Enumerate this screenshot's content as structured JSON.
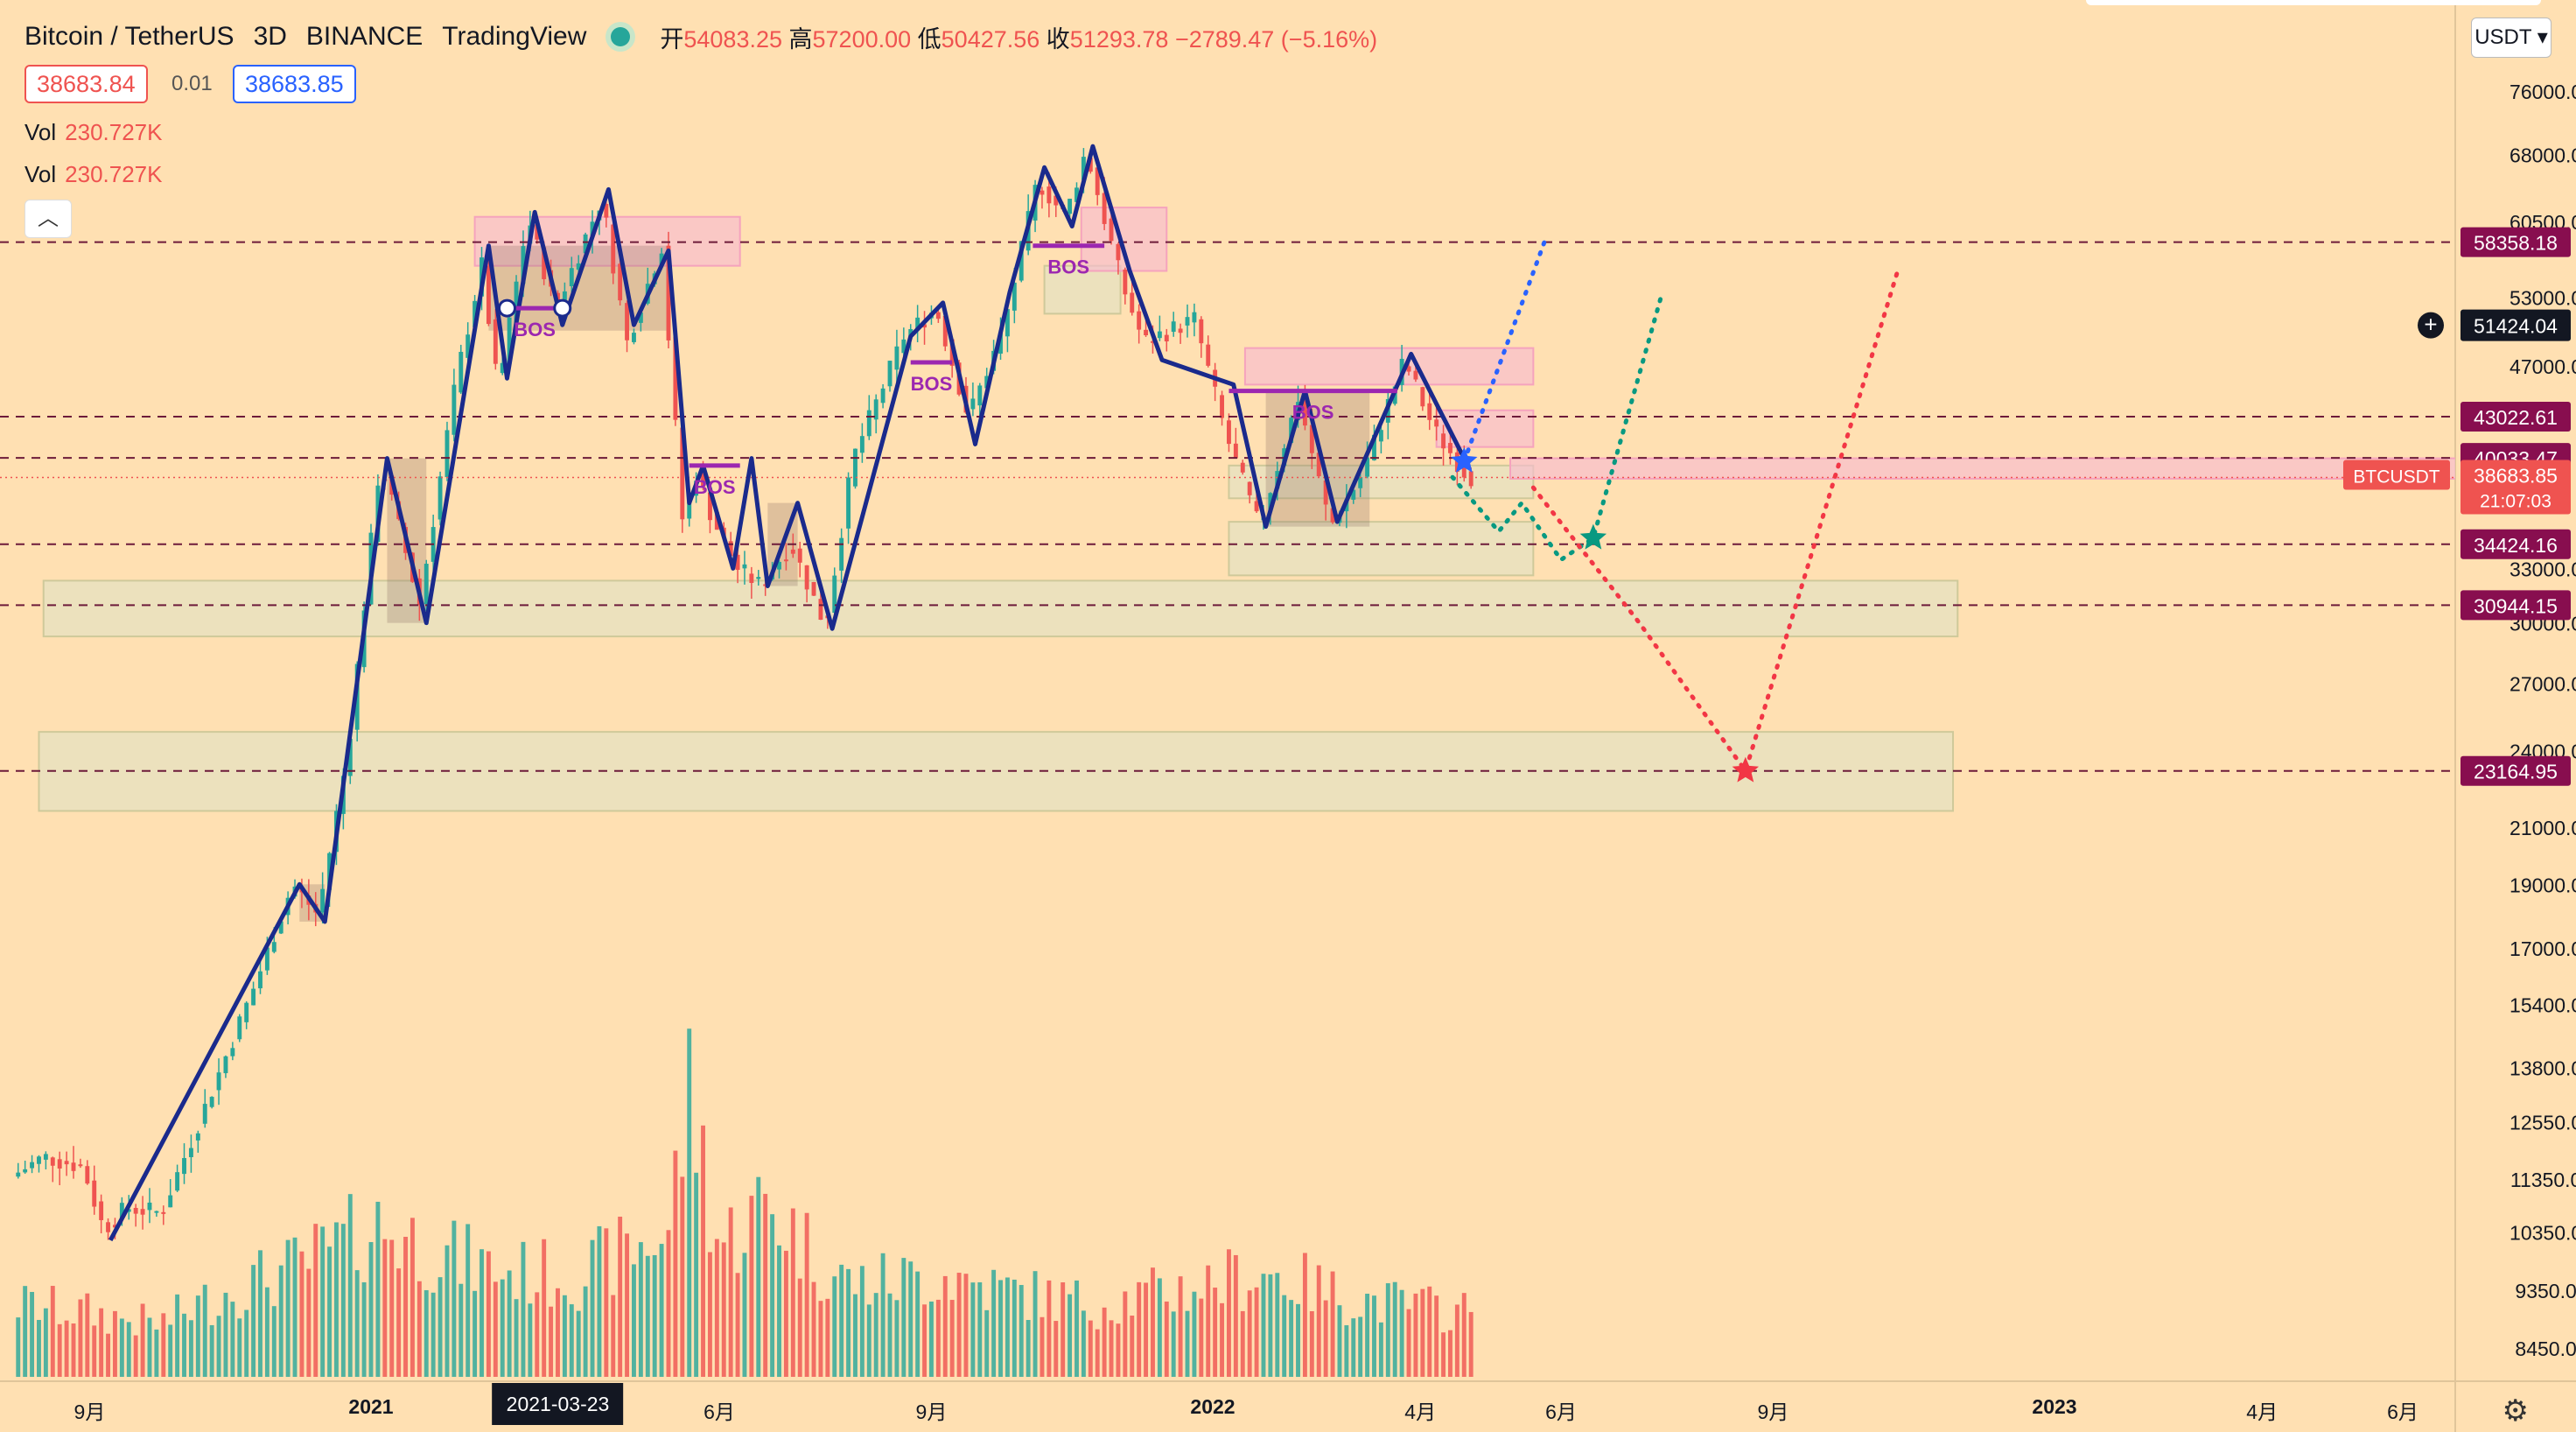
{
  "header": {
    "symbol": "Bitcoin / TetherUS",
    "interval": "3D",
    "exchange": "BINANCE",
    "publisher": "TradingView",
    "open_label": "开",
    "open": "54083.25",
    "high_label": "高",
    "high": "57200.00",
    "low_label": "低",
    "low": "50427.56",
    "close_label": "收",
    "close": "51293.78",
    "change": "−2789.47 (−5.16%)"
  },
  "quote": {
    "sell": "38683.84",
    "spread": "0.01",
    "buy": "38683.85"
  },
  "indicators": [
    {
      "label": "Vol",
      "value": "230.727K"
    },
    {
      "label": "Vol",
      "value": "230.727K"
    }
  ],
  "collapse_icon": "chevron-up-icon",
  "currency_select": "USDT",
  "settings_icon": "gear-icon",
  "colors": {
    "background": "#ffe0b2",
    "up": "#26a69a",
    "down": "#ef5350",
    "wave": "#1a2a8c",
    "bos": "#9c27b0",
    "level_label": "#880e4f",
    "supply_zone": "#f8bbd0",
    "demand_zone": "#e6e2c0"
  },
  "chart_data": {
    "type": "candlestick",
    "y_scale": "log",
    "ylim": [
      7800,
      90000
    ],
    "y_ticks": [
      {
        "value": 76000,
        "label": "76000.00"
      },
      {
        "value": 68000,
        "label": "68000.00"
      },
      {
        "value": 60500,
        "label": "60500.00"
      },
      {
        "value": 53000,
        "label": "53000.00"
      },
      {
        "value": 47000,
        "label": "47000.00"
      },
      {
        "value": 33000,
        "label": "33000.00"
      },
      {
        "value": 30000,
        "label": "30000.00"
      },
      {
        "value": 27000,
        "label": "27000.00"
      },
      {
        "value": 24000,
        "label": "24000.00"
      },
      {
        "value": 21000,
        "label": "21000.00"
      },
      {
        "value": 19000,
        "label": "19000.00"
      },
      {
        "value": 17000,
        "label": "17000.00"
      },
      {
        "value": 15400,
        "label": "15400.00"
      },
      {
        "value": 13800,
        "label": "13800.00"
      },
      {
        "value": 12550,
        "label": "12550.00"
      },
      {
        "value": 11350,
        "label": "11350.00"
      },
      {
        "value": 10350,
        "label": "10350.00"
      },
      {
        "value": 9350,
        "label": "9350.00"
      },
      {
        "value": 8450,
        "label": "8450.00"
      }
    ],
    "x_ticks": [
      {
        "date": "2020-09-01",
        "label": "9月",
        "bold": false
      },
      {
        "date": "2021-01-01",
        "label": "2021",
        "bold": true
      },
      {
        "date": "2021-06-01",
        "label": "6月",
        "bold": false
      },
      {
        "date": "2021-09-01",
        "label": "9月",
        "bold": false
      },
      {
        "date": "2022-01-01",
        "label": "2022",
        "bold": true
      },
      {
        "date": "2022-04-01",
        "label": "4月",
        "bold": false
      },
      {
        "date": "2022-06-01",
        "label": "6月",
        "bold": false
      },
      {
        "date": "2022-09-01",
        "label": "9月",
        "bold": false
      },
      {
        "date": "2023-01-01",
        "label": "2023",
        "bold": true
      },
      {
        "date": "2023-04-01",
        "label": "4月",
        "bold": false
      },
      {
        "date": "2023-06-01",
        "label": "6月",
        "bold": false
      }
    ],
    "x_cursor_label": {
      "date": "2021-03-23",
      "label": "2021-03-23"
    },
    "price_path": [
      [
        "2020-08-01",
        11400
      ],
      [
        "2020-08-15",
        11800
      ],
      [
        "2020-09-01",
        11600
      ],
      [
        "2020-09-10",
        10400
      ],
      [
        "2020-09-20",
        10800
      ],
      [
        "2020-10-05",
        10700
      ],
      [
        "2020-10-25",
        13000
      ],
      [
        "2020-11-15",
        16000
      ],
      [
        "2020-12-01",
        19000
      ],
      [
        "2020-12-12",
        18000
      ],
      [
        "2020-12-25",
        24000
      ],
      [
        "2021-01-08",
        40000
      ],
      [
        "2021-01-25",
        31000
      ],
      [
        "2021-02-10",
        46000
      ],
      [
        "2021-02-21",
        56000
      ],
      [
        "2021-02-28",
        45000
      ],
      [
        "2021-03-13",
        61000
      ],
      [
        "2021-03-25",
        52000
      ],
      [
        "2021-04-14",
        63000
      ],
      [
        "2021-04-25",
        49000
      ],
      [
        "2021-05-10",
        58000
      ],
      [
        "2021-05-19",
        36000
      ],
      [
        "2021-05-25",
        39000
      ],
      [
        "2021-06-01",
        36000
      ],
      [
        "2021-06-12",
        33000
      ],
      [
        "2021-06-22",
        32000
      ],
      [
        "2021-07-05",
        34500
      ],
      [
        "2021-07-20",
        29800
      ],
      [
        "2021-08-01",
        40000
      ],
      [
        "2021-08-23",
        49500
      ],
      [
        "2021-09-06",
        52000
      ],
      [
        "2021-09-20",
        43000
      ],
      [
        "2021-10-05",
        50000
      ],
      [
        "2021-10-20",
        65000
      ],
      [
        "2021-11-01",
        61000
      ],
      [
        "2021-11-10",
        68500
      ],
      [
        "2021-11-26",
        54000
      ],
      [
        "2021-12-05",
        49000
      ],
      [
        "2021-12-27",
        51000
      ],
      [
        "2022-01-10",
        41500
      ],
      [
        "2022-01-24",
        35500
      ],
      [
        "2022-02-10",
        44500
      ],
      [
        "2022-02-24",
        35500
      ],
      [
        "2022-03-10",
        39000
      ],
      [
        "2022-03-28",
        47500
      ],
      [
        "2022-04-10",
        42000
      ],
      [
        "2022-04-25",
        38683
      ]
    ],
    "volume_path": [
      [
        "2020-08-01",
        0.25
      ],
      [
        "2020-09-01",
        0.22
      ],
      [
        "2020-10-01",
        0.18
      ],
      [
        "2020-11-01",
        0.3
      ],
      [
        "2020-12-01",
        0.38
      ],
      [
        "2021-01-05",
        0.52
      ],
      [
        "2021-02-01",
        0.42
      ],
      [
        "2021-03-01",
        0.36
      ],
      [
        "2021-04-01",
        0.35
      ],
      [
        "2021-05-10",
        0.5
      ],
      [
        "2021-05-19",
        1.0
      ],
      [
        "2021-06-01",
        0.45
      ],
      [
        "2021-06-22",
        0.6
      ],
      [
        "2021-07-20",
        0.35
      ],
      [
        "2021-08-01",
        0.32
      ],
      [
        "2021-09-07",
        0.35
      ],
      [
        "2021-10-01",
        0.3
      ],
      [
        "2021-11-10",
        0.25
      ],
      [
        "2021-12-04",
        0.28
      ],
      [
        "2022-01-24",
        0.36
      ],
      [
        "2022-03-01",
        0.27
      ],
      [
        "2022-04-25",
        0.22
      ]
    ],
    "wave_path": [
      [
        "2020-09-10",
        10200
      ],
      [
        "2020-12-01",
        19000
      ],
      [
        "2020-12-12",
        17800
      ],
      [
        "2021-01-08",
        40000
      ],
      [
        "2021-01-25",
        30000
      ],
      [
        "2021-02-21",
        58000
      ],
      [
        "2021-03-01",
        46000
      ],
      [
        "2021-03-13",
        61500
      ],
      [
        "2021-03-25",
        50500
      ],
      [
        "2021-04-14",
        64000
      ],
      [
        "2021-04-25",
        50500
      ],
      [
        "2021-05-10",
        57500
      ],
      [
        "2021-05-19",
        37000
      ],
      [
        "2021-05-25",
        39500
      ],
      [
        "2021-06-07",
        33000
      ],
      [
        "2021-06-15",
        40000
      ],
      [
        "2021-06-22",
        32000
      ],
      [
        "2021-07-05",
        37000
      ],
      [
        "2021-07-20",
        29700
      ],
      [
        "2021-08-23",
        49500
      ],
      [
        "2021-09-06",
        52500
      ],
      [
        "2021-09-20",
        41000
      ],
      [
        "2021-10-05",
        53500
      ],
      [
        "2021-10-20",
        66500
      ],
      [
        "2021-11-01",
        60000
      ],
      [
        "2021-11-10",
        69000
      ],
      [
        "2021-11-26",
        55500
      ],
      [
        "2021-12-10",
        47500
      ],
      [
        "2022-01-10",
        45500
      ],
      [
        "2022-01-24",
        35500
      ],
      [
        "2022-02-10",
        45000
      ],
      [
        "2022-02-24",
        35800
      ],
      [
        "2022-03-28",
        48000
      ],
      [
        "2022-04-20",
        40000
      ]
    ],
    "levels": [
      {
        "value": 58358.18,
        "label": "58358.18"
      },
      {
        "value": 43022.61,
        "label": "43022.61"
      },
      {
        "value": 40033.47,
        "label": "40033.47"
      },
      {
        "value": 34424.16,
        "label": "34424.16"
      },
      {
        "value": 30944.15,
        "label": "30944.15"
      },
      {
        "value": 23164.95,
        "label": "23164.95"
      }
    ],
    "crosshair_price": "51424.04",
    "current_price": {
      "value": 38683.85,
      "label": "38683.85",
      "countdown": "21:07:03",
      "symbol": "BTCUSDT"
    },
    "supply_zones": [
      {
        "x0": "2021-02-15",
        "x1": "2021-06-10",
        "y_top": 61000,
        "y_bottom": 56000
      },
      {
        "x0": "2021-11-05",
        "x1": "2021-12-12",
        "y_top": 62000,
        "y_bottom": 55500
      },
      {
        "x0": "2022-01-15",
        "x1": "2022-05-20",
        "y_top": 48500,
        "y_bottom": 45500
      },
      {
        "x0": "2022-04-08",
        "x1": "2022-05-20",
        "y_top": 43500,
        "y_bottom": 40800
      },
      {
        "x0": "2022-05-10",
        "x1": "2023-07-25",
        "y_top": 40000,
        "y_bottom": 38600
      }
    ],
    "demand_zones": [
      {
        "x0": "2021-10-20",
        "x1": "2021-11-22",
        "y_top": 56000,
        "y_bottom": 51500
      },
      {
        "x0": "2022-01-08",
        "x1": "2022-05-20",
        "y_top": 39500,
        "y_bottom": 37300
      },
      {
        "x0": "2022-01-08",
        "x1": "2022-05-20",
        "y_top": 35800,
        "y_bottom": 32600
      },
      {
        "x0": "2020-08-12",
        "x1": "2022-11-20",
        "y_top": 32300,
        "y_bottom": 29300
      },
      {
        "x0": "2020-08-10",
        "x1": "2022-11-18",
        "y_top": 24800,
        "y_bottom": 21600
      }
    ],
    "range_boxes": [
      {
        "x0": "2021-01-08",
        "x1": "2021-01-25",
        "y_top": 40000,
        "y_bottom": 30000
      },
      {
        "x0": "2021-02-21",
        "x1": "2021-05-10",
        "y_top": 58000,
        "y_bottom": 50000
      },
      {
        "x0": "2022-01-24",
        "x1": "2022-03-10",
        "y_top": 45000,
        "y_bottom": 35500
      },
      {
        "x0": "2020-12-01",
        "x1": "2020-12-12",
        "y_top": 19000,
        "y_bottom": 17800
      },
      {
        "x0": "2021-06-22",
        "x1": "2021-07-05",
        "y_top": 37000,
        "y_bottom": 32000
      }
    ],
    "bos_marks": [
      {
        "x0": "2021-03-01",
        "x1": "2021-03-25",
        "y": 52000,
        "label": "BOS",
        "dots": true
      },
      {
        "x0": "2021-05-19",
        "x1": "2021-06-10",
        "y": 39500,
        "label": "BOS",
        "dots": false
      },
      {
        "x0": "2021-08-23",
        "x1": "2021-09-10",
        "y": 47300,
        "label": "BOS",
        "dots": false
      },
      {
        "x0": "2021-10-15",
        "x1": "2021-11-15",
        "y": 58000,
        "label": "BOS",
        "dots": false
      },
      {
        "x0": "2022-01-08",
        "x1": "2022-03-22",
        "y": 45000,
        "label": "BOS",
        "dots": false
      }
    ],
    "projections": [
      {
        "color": "#2962ff",
        "points": [
          [
            "2022-04-20",
            39800
          ],
          [
            "2022-05-25",
            58500
          ]
        ],
        "star_index": 0
      },
      {
        "color": "#089981",
        "points": [
          [
            "2022-04-15",
            38700
          ],
          [
            "2022-05-05",
            35200
          ],
          [
            "2022-05-15",
            37000
          ],
          [
            "2022-06-01",
            33500
          ],
          [
            "2022-06-15",
            34800
          ],
          [
            "2022-07-15",
            53500
          ]
        ],
        "star_index": 4
      },
      {
        "color": "#f23645",
        "points": [
          [
            "2022-05-20",
            38000
          ],
          [
            "2022-07-05",
            30000
          ],
          [
            "2022-08-20",
            23164.95
          ],
          [
            "2022-10-25",
            55500
          ]
        ],
        "star_index": 2
      }
    ]
  }
}
